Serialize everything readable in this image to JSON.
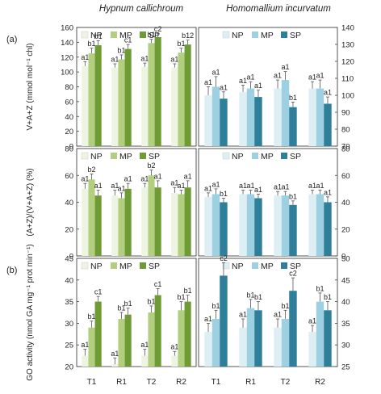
{
  "column_titles": [
    "Hypnum callichroum",
    "Homomallium incurvatum"
  ],
  "panel_tags": [
    "(a)",
    "(b)"
  ],
  "legend_labels": [
    "NP",
    "MP",
    "SP"
  ],
  "colors": {
    "left": [
      "#eef4e2",
      "#b2cf80",
      "#6f9b35"
    ],
    "right": [
      "#ddeff5",
      "#9dd0e1",
      "#2f7f9b"
    ]
  },
  "chart_data": [
    {
      "type": "bar",
      "row": 0,
      "ylabel": "V+A+Z (mmol mol⁻¹ chl)",
      "ylim": [
        0,
        160
      ],
      "yticks": [
        0,
        20,
        40,
        60,
        80,
        100,
        120,
        140,
        160
      ],
      "right_ylim": [
        70,
        140
      ],
      "right_yticks": [
        70,
        80,
        90,
        100,
        110,
        120,
        130,
        140
      ],
      "categories": [
        "T1",
        "R1",
        "T2",
        "R2"
      ],
      "panels": [
        {
          "species": "Hypnum callichroum",
          "series": [
            {
              "name": "NP",
              "values": [
                108,
                106,
                107,
                106
              ],
              "errors": [
                6,
                5,
                5,
                5
              ],
              "labels": [
                "a1",
                "a1",
                "a1",
                "a1"
              ]
            },
            {
              "name": "MP",
              "values": [
                125,
                117,
                139,
                126
              ],
              "errors": [
                7,
                6,
                5,
                6
              ],
              "labels": [
                "b1",
                "b1",
                "b1",
                "b1"
              ]
            },
            {
              "name": "SP",
              "values": [
                136,
                131,
                147,
                137
              ],
              "errors": [
                6,
                6,
                5,
                6
              ],
              "labels": [
                "b1",
                "c1",
                "c2",
                "b12"
              ]
            }
          ]
        },
        {
          "species": "Homomallium incurvatum",
          "series": [
            {
              "name": "NP",
              "values": [
                100,
                102,
                104,
                104
              ],
              "errors": [
                5,
                4,
                5,
                4
              ],
              "labels": [
                "a1",
                "a1",
                "a1",
                "a1"
              ]
            },
            {
              "name": "MP",
              "values": [
                105,
                104,
                109,
                104
              ],
              "errors": [
                6,
                4,
                5,
                5
              ],
              "labels": [
                "a1",
                "a1",
                "a1",
                "a1"
              ]
            },
            {
              "name": "SP",
              "values": [
                98,
                99,
                93,
                95
              ],
              "errors": [
                4,
                4,
                3,
                4
              ],
              "labels": [
                "a1",
                "a1",
                "b1",
                "a1"
              ]
            }
          ]
        }
      ]
    },
    {
      "type": "bar",
      "row": 1,
      "ylabel": "(A+Z)/(V+A+Z) (%)",
      "ylim": [
        0,
        80
      ],
      "yticks": [
        0,
        20,
        40,
        60,
        80
      ],
      "categories": [
        "T1",
        "R1",
        "T2",
        "R2"
      ],
      "panels": [
        {
          "species": "Hypnum callichroum",
          "series": [
            {
              "name": "NP",
              "values": [
                50,
                45,
                51,
                47
              ],
              "errors": [
                4,
                4,
                3,
                4
              ],
              "labels": [
                "a1",
                "a1",
                "a1",
                "a1"
              ]
            },
            {
              "name": "MP",
              "values": [
                57,
                43,
                60,
                46
              ],
              "errors": [
                4,
                4,
                4,
                3
              ],
              "labels": [
                "b2",
                "a1",
                "b2",
                "a1"
              ]
            },
            {
              "name": "SP",
              "values": [
                45,
                50,
                51,
                51
              ],
              "errors": [
                4,
                4,
                5,
                5
              ],
              "labels": [
                "a1",
                "a1",
                "a1",
                "a1"
              ]
            }
          ]
        },
        {
          "species": "Homomallium incurvatum",
          "series": [
            {
              "name": "NP",
              "values": [
                44,
                46,
                45,
                46
              ],
              "errors": [
                3,
                3,
                3,
                3
              ],
              "labels": [
                "a1",
                "a1",
                "a1",
                "a1"
              ]
            },
            {
              "name": "MP",
              "values": [
                46,
                46,
                45,
                46
              ],
              "errors": [
                4,
                3,
                3,
                3
              ],
              "labels": [
                "a1",
                "a1",
                "a1",
                "a1"
              ]
            },
            {
              "name": "SP",
              "values": [
                40,
                43,
                38,
                40
              ],
              "errors": [
                3,
                3,
                3,
                4
              ],
              "labels": [
                "b1",
                "a1",
                "b1",
                "a1"
              ]
            }
          ]
        }
      ]
    },
    {
      "type": "bar",
      "row": 2,
      "ylabel": "GO activity (nmol GA mg⁻¹ prot min⁻¹)",
      "ylim": [
        20,
        45
      ],
      "yticks": [
        20,
        25,
        30,
        35,
        40,
        45
      ],
      "right_ylim": [
        25,
        50
      ],
      "right_yticks": [
        25,
        30,
        35,
        40,
        45,
        50
      ],
      "categories": [
        "T1",
        "R1",
        "T2",
        "R2"
      ],
      "panels": [
        {
          "species": "Hypnum callichroum",
          "series": [
            {
              "name": "NP",
              "values": [
                22.5,
                20.5,
                22.5,
                22.5
              ],
              "errors": [
                1.5,
                1.5,
                1.5,
                1.0
              ],
              "labels": [
                "a1",
                "a1",
                "a1",
                "a1"
              ]
            },
            {
              "name": "MP",
              "values": [
                29,
                31,
                32.5,
                33
              ],
              "errors": [
                1.5,
                1.5,
                1.5,
                2.0
              ],
              "labels": [
                "b1",
                "b1",
                "b1",
                "b1"
              ]
            },
            {
              "name": "SP",
              "values": [
                35,
                32,
                36.5,
                35
              ],
              "errors": [
                1.2,
                1.5,
                1.5,
                1.5
              ],
              "labels": [
                "c1",
                "b1",
                "c1",
                "b1"
              ]
            }
          ]
        },
        {
          "species": "Homomallium incurvatum",
          "series": [
            {
              "name": "NP",
              "values": [
                33,
                34,
                34,
                33
              ],
              "errors": [
                2,
                2,
                2,
                1.5
              ],
              "labels": [
                "a1",
                "a1",
                "a1",
                "a1"
              ]
            },
            {
              "name": "MP",
              "values": [
                36,
                38.5,
                36,
                40
              ],
              "errors": [
                2,
                2,
                2,
                2
              ],
              "labels": [
                "b1",
                "b1",
                "b1",
                "b1"
              ]
            },
            {
              "name": "SP",
              "values": [
                46,
                38,
                42.5,
                38
              ],
              "errors": [
                3,
                2,
                3,
                2
              ],
              "labels": [
                "c2",
                "b1",
                "c2",
                "b1"
              ]
            }
          ]
        }
      ]
    }
  ]
}
